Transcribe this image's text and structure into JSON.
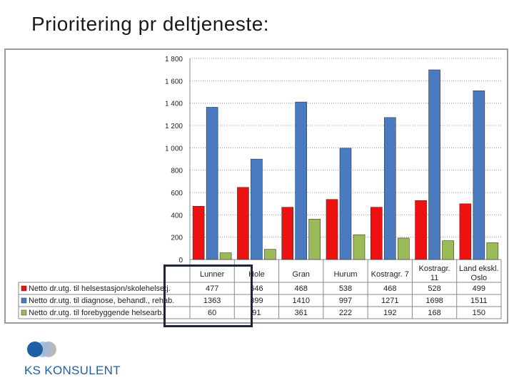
{
  "slide": {
    "title": "Prioritering pr deltjeneste:"
  },
  "logo": {
    "text": "KS KONSULENT",
    "colors": {
      "dark": "#1f5fa8",
      "light": "#9bbbd9",
      "gray": "#b9b9b9"
    }
  },
  "chart_data": {
    "type": "bar",
    "categories": [
      "Lunner",
      "Hole",
      "Gran",
      "Hurum",
      "Kostragr. 7",
      "Kostragr. 11",
      "Land ekskl. Oslo"
    ],
    "series": [
      {
        "name": "Netto dr.utg. til helsestasjon/skolehelsetj.",
        "color": "#ee1111",
        "values": [
          477,
          646,
          468,
          538,
          468,
          528,
          499
        ]
      },
      {
        "name": "Netto dr.utg. til diagnose, behandl., rehab.",
        "color": "#4a7bc0",
        "values": [
          1363,
          899,
          1410,
          997,
          1271,
          1698,
          1511
        ]
      },
      {
        "name": "Netto dr.utg. til forebyggende helsearb.",
        "color": "#9bbb59",
        "values": [
          60,
          91,
          361,
          222,
          192,
          168,
          150
        ]
      }
    ],
    "table_values": [
      [
        "477",
        "646",
        "468",
        "538",
        "468",
        "528",
        "499"
      ],
      [
        "1363",
        "899",
        "1410",
        "997",
        "1271",
        "1698",
        "1511"
      ],
      [
        "60",
        "91",
        "361",
        "222",
        "192",
        "168",
        "150"
      ]
    ],
    "yticks": [
      "0",
      "200",
      "400",
      "600",
      "800",
      "1 000",
      "1 200",
      "1 400",
      "1 600",
      "1 800"
    ],
    "ylim": [
      0,
      1800
    ],
    "grid": true,
    "legend": "data-table-left"
  }
}
